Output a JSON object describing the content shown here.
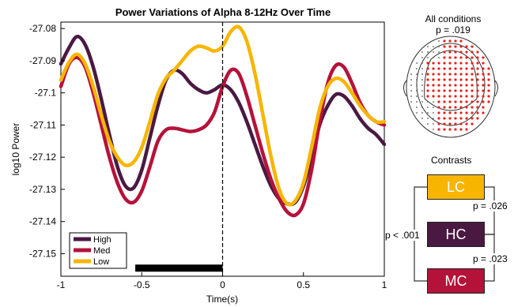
{
  "chart_data": {
    "type": "line",
    "title": "Power Variations of Alpha 8-12Hz Over Time",
    "xlabel": "Time(s)",
    "ylabel": "log10 Power",
    "xlim": [
      -1,
      1
    ],
    "ylim": [
      -27.157,
      -27.078
    ],
    "xticks": [
      "-1",
      "-0.5",
      "0",
      "0.5",
      "1"
    ],
    "xtick_values": [
      -1,
      -0.5,
      0,
      0.5,
      1
    ],
    "yticks": [
      "-27.08",
      "-27.09",
      "-27.1",
      "-27.11",
      "-27.12",
      "-27.13",
      "-27.14",
      "-27.15"
    ],
    "ytick_values": [
      -27.08,
      -27.09,
      -27.1,
      -27.11,
      -27.12,
      -27.13,
      -27.14,
      -27.15
    ],
    "grid": false,
    "legend_position": "bottom-left",
    "vline_x": 0,
    "bar": {
      "x0": -0.54,
      "x1": 0.0,
      "y": -27.1545
    },
    "series": [
      {
        "name": "High",
        "color": "#4a1942",
        "x": [
          -1,
          -0.95,
          -0.9,
          -0.85,
          -0.8,
          -0.75,
          -0.7,
          -0.65,
          -0.6,
          -0.55,
          -0.5,
          -0.45,
          -0.4,
          -0.35,
          -0.3,
          -0.25,
          -0.2,
          -0.15,
          -0.1,
          -0.05,
          0,
          0.05,
          0.1,
          0.15,
          0.2,
          0.25,
          0.3,
          0.35,
          0.4,
          0.45,
          0.5,
          0.55,
          0.6,
          0.65,
          0.7,
          0.75,
          0.8,
          0.85,
          0.9,
          0.95,
          1
        ],
        "y": [
          -27.091,
          -27.086,
          -27.0825,
          -27.085,
          -27.092,
          -27.102,
          -27.113,
          -27.123,
          -27.129,
          -27.1295,
          -27.124,
          -27.114,
          -27.104,
          -27.096,
          -27.093,
          -27.094,
          -27.097,
          -27.099,
          -27.1,
          -27.099,
          -27.0975,
          -27.099,
          -27.103,
          -27.109,
          -27.116,
          -27.123,
          -27.129,
          -27.133,
          -27.1345,
          -27.134,
          -27.129,
          -27.12,
          -27.11,
          -27.104,
          -27.1005,
          -27.101,
          -27.104,
          -27.108,
          -27.111,
          -27.113,
          -27.116
        ]
      },
      {
        "name": "Med",
        "color": "#b5123a",
        "x": [
          -1,
          -0.95,
          -0.9,
          -0.85,
          -0.8,
          -0.75,
          -0.7,
          -0.65,
          -0.6,
          -0.55,
          -0.5,
          -0.45,
          -0.4,
          -0.35,
          -0.3,
          -0.25,
          -0.2,
          -0.15,
          -0.1,
          -0.05,
          0,
          0.05,
          0.1,
          0.15,
          0.2,
          0.25,
          0.3,
          0.35,
          0.4,
          0.45,
          0.5,
          0.55,
          0.6,
          0.65,
          0.7,
          0.75,
          0.8,
          0.85,
          0.9,
          0.95,
          1
        ],
        "y": [
          -27.098,
          -27.091,
          -27.089,
          -27.092,
          -27.1,
          -27.11,
          -27.12,
          -27.128,
          -27.133,
          -27.134,
          -27.1305,
          -27.123,
          -27.115,
          -27.1115,
          -27.111,
          -27.1115,
          -27.112,
          -27.1115,
          -27.11,
          -27.106,
          -27.098,
          -27.093,
          -27.094,
          -27.101,
          -27.11,
          -27.119,
          -27.127,
          -27.133,
          -27.137,
          -27.138,
          -27.1345,
          -27.124,
          -27.109,
          -27.097,
          -27.0915,
          -27.092,
          -27.097,
          -27.103,
          -27.107,
          -27.109,
          -27.11
        ]
      },
      {
        "name": "Low",
        "color": "#f7b500",
        "x": [
          -1,
          -0.95,
          -0.9,
          -0.85,
          -0.8,
          -0.75,
          -0.7,
          -0.65,
          -0.6,
          -0.55,
          -0.5,
          -0.45,
          -0.4,
          -0.35,
          -0.3,
          -0.25,
          -0.2,
          -0.15,
          -0.1,
          -0.05,
          0,
          0.05,
          0.1,
          0.15,
          0.2,
          0.25,
          0.3,
          0.35,
          0.4,
          0.45,
          0.5,
          0.55,
          0.6,
          0.65,
          0.7,
          0.75,
          0.8,
          0.85,
          0.9,
          0.95,
          1
        ],
        "y": [
          -27.096,
          -27.0905,
          -27.088,
          -27.091,
          -27.098,
          -27.107,
          -27.115,
          -27.12,
          -27.1225,
          -27.1215,
          -27.117,
          -27.109,
          -27.1005,
          -27.0955,
          -27.093,
          -27.09,
          -27.087,
          -27.0855,
          -27.086,
          -27.087,
          -27.0855,
          -27.081,
          -27.0795,
          -27.084,
          -27.094,
          -27.107,
          -27.12,
          -27.13,
          -27.1345,
          -27.1335,
          -27.128,
          -27.117,
          -27.105,
          -27.098,
          -27.0955,
          -27.0965,
          -27.1,
          -27.104,
          -27.107,
          -27.109,
          -27.109
        ]
      }
    ]
  },
  "headmap": {
    "title": "All conditions",
    "pvalue": "p = .019",
    "dot_color": "#e8231e",
    "outline_color": "#333333"
  },
  "contrasts": {
    "title": "Contrasts",
    "boxes": [
      {
        "label": "LC",
        "fill": "#f7b500",
        "text_color": "#ffffff"
      },
      {
        "label": "HC",
        "fill": "#4a1942",
        "text_color": "#ffffff"
      },
      {
        "label": "MC",
        "fill": "#b5123a",
        "text_color": "#ffffff"
      }
    ],
    "p_lc_hc": "p = .026",
    "p_hc_mc": "p = .023",
    "p_lc_mc": "p < .001"
  }
}
